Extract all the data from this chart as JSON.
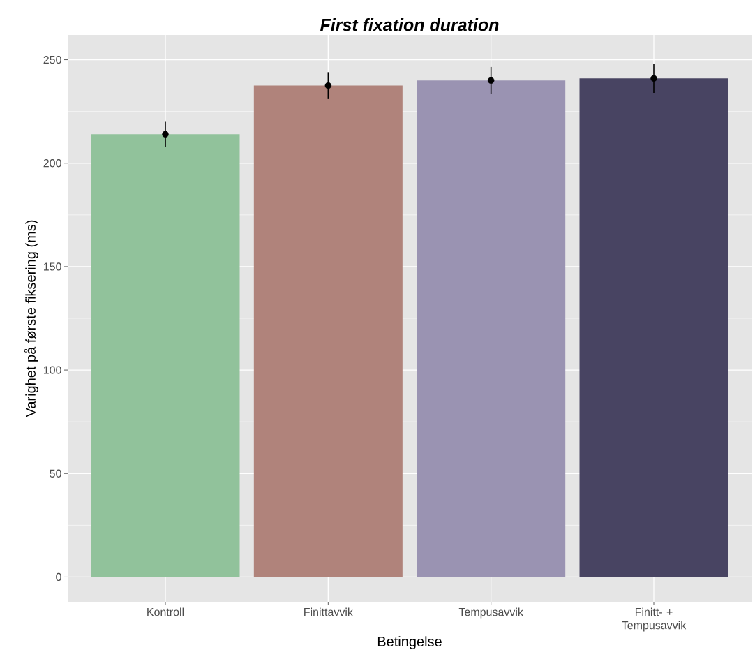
{
  "chart_data": {
    "type": "bar",
    "title": "First fixation duration",
    "xlabel": "Betingelse",
    "ylabel": "Varighet på første fiksering (ms)",
    "categories": [
      "Kontroll",
      "Finittavvik",
      "Tempusavvik",
      "Finitt- + Tempusavvik"
    ],
    "series": [
      {
        "values": [
          214,
          237.5,
          240,
          241
        ],
        "colors": [
          "#91c29b",
          "#b0837b",
          "#9a93b2",
          "#484462"
        ]
      },
      {
        "type": "scatter",
        "x": [
          "Kontroll",
          "Finittavvik",
          "Tempusavvik",
          "Finitt- + Tempusavvik"
        ],
        "values": [
          214,
          237.5,
          240,
          241
        ],
        "errors": [
          6,
          6.5,
          6.5,
          7
        ],
        "color": "#000000",
        "marker": "circle"
      }
    ],
    "ylim": [
      -12,
      262
    ],
    "yticks": [
      0,
      50,
      100,
      150,
      200,
      250
    ],
    "grid": true
  }
}
